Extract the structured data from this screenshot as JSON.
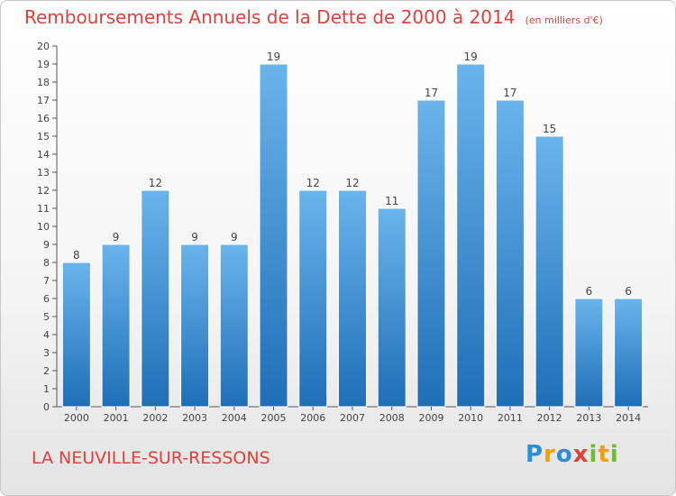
{
  "title": "Remboursements Annuels de la Dette de 2000 à 2014",
  "unit": "(en milliers d'€)",
  "commune": "LA NEUVILLE-SUR-RESSONS",
  "logo": {
    "text": "Proxiti",
    "parts": [
      "P",
      "r",
      "o",
      "x",
      "i",
      "t",
      "i"
    ]
  },
  "colors": {
    "title": "#e0413a",
    "bar_top": "#6ab4ec",
    "bar_bottom": "#1f6fb8",
    "axis": "#555555",
    "grid": "#d0d0d0"
  },
  "chart_data": {
    "type": "bar",
    "categories": [
      "2000",
      "2001",
      "2002",
      "2003",
      "2004",
      "2005",
      "2006",
      "2007",
      "2008",
      "2009",
      "2010",
      "2011",
      "2012",
      "2013",
      "2014"
    ],
    "values": [
      8,
      9,
      12,
      9,
      9,
      19,
      12,
      12,
      11,
      17,
      19,
      17,
      15,
      6,
      6
    ],
    "ylim": [
      0,
      20
    ],
    "yticks": [
      0,
      1,
      2,
      3,
      4,
      5,
      6,
      7,
      8,
      9,
      10,
      11,
      12,
      13,
      14,
      15,
      16,
      17,
      18,
      19,
      20
    ],
    "grid": false,
    "data_labels": true
  }
}
